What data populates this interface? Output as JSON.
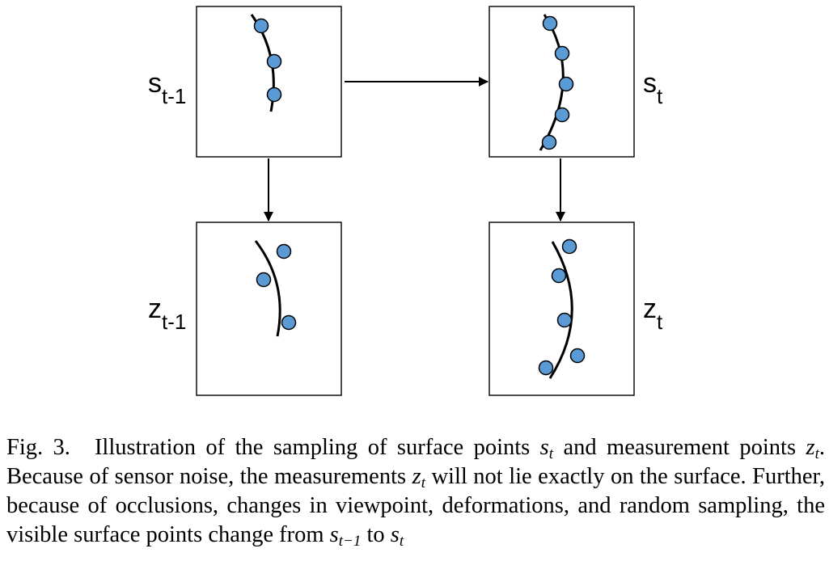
{
  "nodes": {
    "s_prev": {
      "base": "s",
      "sub": "t-1"
    },
    "s_curr": {
      "base": "s",
      "sub": "t"
    },
    "z_prev": {
      "base": "z",
      "sub": "t-1"
    },
    "z_curr": {
      "base": "z",
      "sub": "t"
    }
  },
  "colors": {
    "point_fill": "#5b9bd5",
    "stroke": "#000000"
  },
  "caption": {
    "fig_label": "Fig. 3.",
    "t1": "Illustration of the sampling of surface points ",
    "m1": "s",
    "m1_sub": "t",
    "t2": " and measurement points ",
    "m2": "z",
    "m2_sub": "t",
    "t3": ". Because of sensor noise, the measurements ",
    "m3": "z",
    "m3_sub": "t",
    "t4": " will not lie exactly on the surface. Further, because of occlusions, changes in viewpoint, deformations, and random sampling, the visible surface points change from ",
    "m4": "s",
    "m4_sub": "t−1",
    "t5": " to ",
    "m5": "s",
    "m5_sub": "t"
  }
}
